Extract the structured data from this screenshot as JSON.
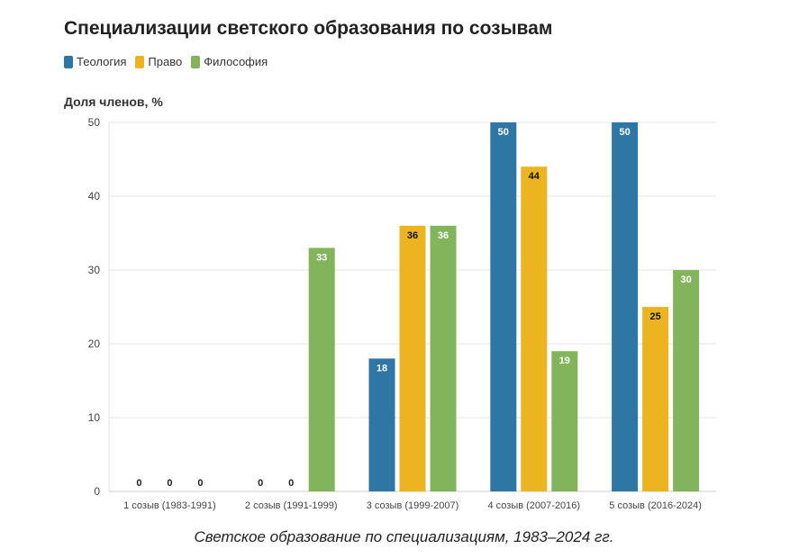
{
  "colors": {
    "theology": "#2e76a3",
    "law": "#edb422",
    "philosophy": "#82b55b",
    "grid": "#e6e6e6"
  },
  "caption": "Светское образование по специализациям, 1983–2024 гг.",
  "chart_data": {
    "type": "bar",
    "title": "Специализации светского образования по созывам",
    "ylabel": "Доля членов, %",
    "xlabel": "",
    "ylim": [
      0,
      50
    ],
    "yticks": [
      0,
      10,
      20,
      30,
      40,
      50
    ],
    "grid": true,
    "legend": "top-left",
    "categories": [
      "1 созыв (1983-1991)",
      "2 созыв (1991-1999)",
      "3 созыв (1999-2007)",
      "4 созыв (2007-2016)",
      "5 созыв (2016-2024)"
    ],
    "series": [
      {
        "name": "Теология",
        "key": "theology",
        "values": [
          0,
          0,
          18,
          50,
          50
        ]
      },
      {
        "name": "Право",
        "key": "law",
        "values": [
          0,
          0,
          36,
          44,
          25
        ]
      },
      {
        "name": "Философия",
        "key": "philosophy",
        "values": [
          0,
          33,
          36,
          19,
          30
        ]
      }
    ]
  }
}
